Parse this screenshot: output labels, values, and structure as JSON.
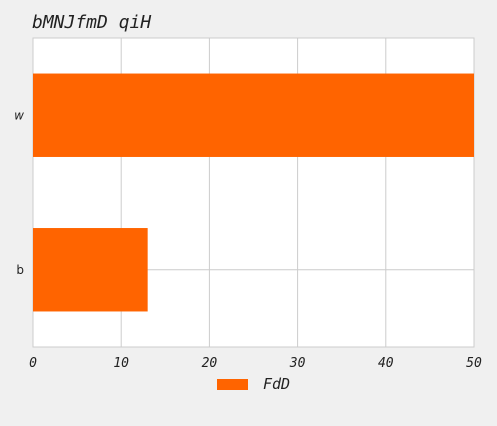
{
  "chart_data": {
    "type": "bar",
    "orientation": "horizontal",
    "title": "bMNJfmD qiH",
    "xlabel": "",
    "ylabel": "",
    "categories": [
      "w",
      "b"
    ],
    "series": [
      {
        "name": "FdD",
        "values": [
          50,
          13
        ],
        "color": "#ff6400"
      }
    ],
    "xlim": [
      0,
      50
    ],
    "xticks": [
      0,
      10,
      20,
      30,
      40,
      50
    ],
    "grid": true,
    "legend_position": "bottom-center"
  }
}
